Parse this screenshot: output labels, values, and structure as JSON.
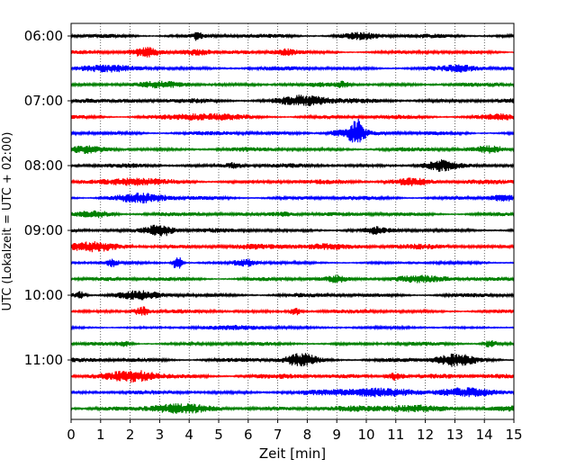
{
  "chart_data": {
    "type": "line",
    "xlabel": "Zeit  [min]",
    "ylabel": "UTC (Lokalzeit = UTC + 02:00)",
    "xlim": [
      0,
      15
    ],
    "x_ticks": [
      "0",
      "1",
      "2",
      "3",
      "4",
      "5",
      "6",
      "7",
      "8",
      "9",
      "10",
      "11",
      "12",
      "13",
      "14",
      "15"
    ],
    "y_ticks": [
      "06:00",
      "07:00",
      "08:00",
      "09:00",
      "10:00",
      "11:00"
    ],
    "grid": "vertical dotted",
    "trace_interval_min": 15,
    "series": [
      {
        "start": "06:00",
        "color": "#000000",
        "amp": 0.45,
        "bursts": [
          [
            4.3,
            0.12,
            1.0
          ],
          [
            9.8,
            0.6,
            0.6
          ]
        ]
      },
      {
        "start": "06:15",
        "color": "#ff0000",
        "amp": 0.4,
        "bursts": [
          [
            2.5,
            0.5,
            0.9
          ],
          [
            4.2,
            0.6,
            0.7
          ],
          [
            7.3,
            0.4,
            0.6
          ]
        ]
      },
      {
        "start": "06:30",
        "color": "#0000ff",
        "amp": 0.45,
        "bursts": [
          [
            1.0,
            1.0,
            0.5
          ],
          [
            13.2,
            0.6,
            0.5
          ]
        ]
      },
      {
        "start": "06:45",
        "color": "#008000",
        "amp": 0.45,
        "bursts": [
          [
            9.2,
            0.2,
            0.6
          ],
          [
            3.2,
            0.8,
            0.4
          ]
        ]
      },
      {
        "start": "07:00",
        "color": "#000000",
        "amp": 0.5,
        "bursts": [
          [
            7.9,
            0.8,
            1.1
          ],
          [
            0.5,
            0.5,
            0.4
          ]
        ]
      },
      {
        "start": "07:15",
        "color": "#ff0000",
        "amp": 0.45,
        "bursts": [
          [
            4.5,
            1.2,
            0.5
          ],
          [
            14.5,
            0.6,
            0.5
          ]
        ]
      },
      {
        "start": "07:30",
        "color": "#0000ff",
        "amp": 0.45,
        "bursts": [
          [
            9.7,
            0.25,
            2.6
          ],
          [
            9.2,
            0.5,
            0.7
          ]
        ]
      },
      {
        "start": "07:45",
        "color": "#008000",
        "amp": 0.45,
        "bursts": [
          [
            0.5,
            0.6,
            0.5
          ],
          [
            14.2,
            0.6,
            0.6
          ]
        ]
      },
      {
        "start": "08:00",
        "color": "#000000",
        "amp": 0.45,
        "bursts": [
          [
            12.5,
            0.5,
            0.9
          ],
          [
            5.5,
            0.3,
            0.6
          ]
        ]
      },
      {
        "start": "08:15",
        "color": "#ff0000",
        "amp": 0.5,
        "bursts": [
          [
            2.0,
            0.9,
            0.6
          ],
          [
            11.5,
            0.7,
            0.6
          ]
        ]
      },
      {
        "start": "08:30",
        "color": "#0000ff",
        "amp": 0.45,
        "bursts": [
          [
            2.4,
            0.9,
            0.8
          ],
          [
            14.6,
            0.4,
            0.5
          ]
        ]
      },
      {
        "start": "08:45",
        "color": "#008000",
        "amp": 0.45,
        "bursts": [
          [
            0.8,
            0.6,
            0.6
          ],
          [
            7.2,
            0.5,
            0.5
          ]
        ]
      },
      {
        "start": "09:00",
        "color": "#000000",
        "amp": 0.45,
        "bursts": [
          [
            3.0,
            0.5,
            1.4
          ],
          [
            10.3,
            0.3,
            0.5
          ]
        ]
      },
      {
        "start": "09:15",
        "color": "#ff0000",
        "amp": 0.55,
        "bursts": [
          [
            0.8,
            0.9,
            0.6
          ],
          [
            8.5,
            1.2,
            0.4
          ]
        ]
      },
      {
        "start": "09:30",
        "color": "#0000ff",
        "amp": 0.3,
        "bursts": [
          [
            3.6,
            0.15,
            1.8
          ],
          [
            1.4,
            0.2,
            0.8
          ],
          [
            5.9,
            0.4,
            0.8
          ]
        ]
      },
      {
        "start": "09:45",
        "color": "#008000",
        "amp": 0.45,
        "bursts": [
          [
            11.7,
            1.0,
            0.6
          ],
          [
            9.0,
            0.3,
            0.5
          ]
        ]
      },
      {
        "start": "10:00",
        "color": "#000000",
        "amp": 0.45,
        "bursts": [
          [
            2.2,
            0.7,
            0.7
          ],
          [
            0.3,
            0.2,
            0.7
          ]
        ]
      },
      {
        "start": "10:15",
        "color": "#ff0000",
        "amp": 0.4,
        "bursts": [
          [
            2.4,
            0.3,
            1.0
          ],
          [
            7.6,
            0.2,
            0.8
          ]
        ]
      },
      {
        "start": "10:30",
        "color": "#0000ff",
        "amp": 0.3,
        "bursts": [
          [
            6.0,
            1.5,
            0.3
          ]
        ]
      },
      {
        "start": "10:45",
        "color": "#008000",
        "amp": 0.4,
        "bursts": [
          [
            1.8,
            0.2,
            0.6
          ],
          [
            14.2,
            0.2,
            0.8
          ]
        ]
      },
      {
        "start": "11:00",
        "color": "#000000",
        "amp": 0.5,
        "bursts": [
          [
            7.8,
            0.5,
            1.2
          ],
          [
            13.0,
            0.6,
            1.1
          ]
        ]
      },
      {
        "start": "11:15",
        "color": "#ff0000",
        "amp": 0.55,
        "bursts": [
          [
            2.2,
            0.8,
            1.0
          ],
          [
            11.0,
            0.3,
            0.9
          ]
        ]
      },
      {
        "start": "11:30",
        "color": "#0000ff",
        "amp": 0.45,
        "bursts": [
          [
            10.3,
            1.5,
            0.8
          ],
          [
            13.2,
            1.0,
            0.7
          ]
        ]
      },
      {
        "start": "11:45",
        "color": "#008000",
        "amp": 0.6,
        "bursts": [
          [
            3.5,
            1.0,
            0.6
          ],
          [
            11.5,
            1.0,
            0.6
          ]
        ]
      }
    ]
  }
}
